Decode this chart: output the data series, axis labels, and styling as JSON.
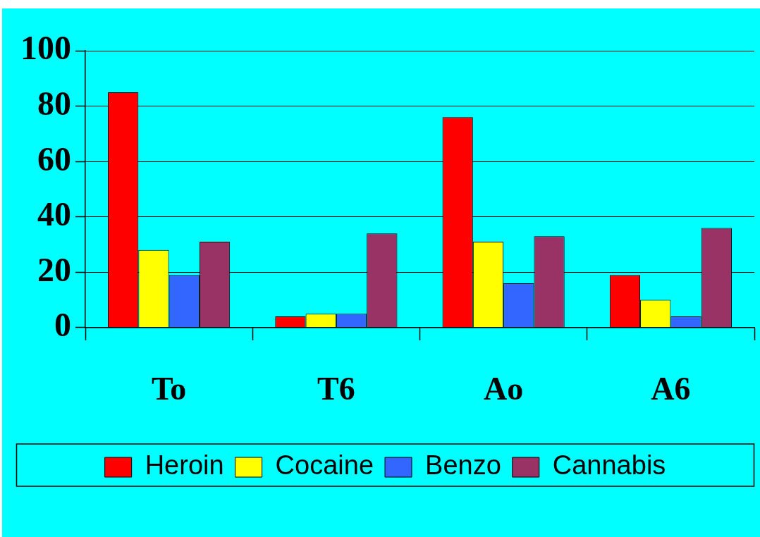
{
  "chart_data": {
    "type": "bar",
    "categories": [
      "To",
      "T6",
      "Ao",
      "A6"
    ],
    "series": [
      {
        "name": "Heroin",
        "color": "#ff0000",
        "values": [
          85,
          4,
          76,
          19
        ]
      },
      {
        "name": "Cocaine",
        "color": "#ffff00",
        "values": [
          28,
          5,
          31,
          10
        ]
      },
      {
        "name": "Benzo",
        "color": "#3366ff",
        "values": [
          19,
          5,
          16,
          4
        ]
      },
      {
        "name": "Cannabis",
        "color": "#993366",
        "values": [
          31,
          34,
          33,
          36
        ]
      }
    ],
    "ylim": [
      0,
      100
    ],
    "yticks": [
      0,
      20,
      40,
      60,
      80,
      100
    ],
    "grid": "y",
    "legend": "bottom"
  }
}
